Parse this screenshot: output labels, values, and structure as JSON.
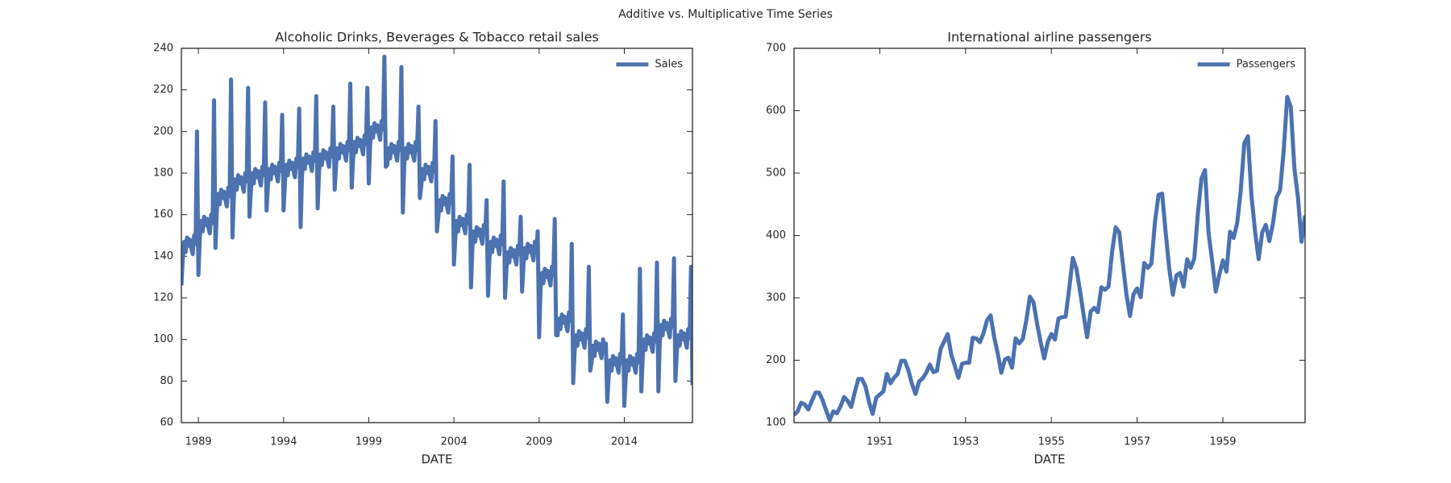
{
  "title": "Additive vs. Multiplicative Time Series",
  "chart_data": [
    {
      "type": "line",
      "title": "Alcoholic Drinks, Beverages & Tobacco retail sales",
      "xlabel": "DATE",
      "x": [
        "1988-01",
        "1988-02",
        "1988-03",
        "1988-04",
        "1988-05",
        "1988-06",
        "1988-07",
        "1988-08",
        "1988-09",
        "1988-10",
        "1988-11",
        "1988-12",
        "1989-01",
        "1989-02",
        "1989-03",
        "1989-04",
        "1989-05",
        "1989-06",
        "1989-07",
        "1989-08",
        "1989-09",
        "1989-10",
        "1989-11",
        "1989-12",
        "1990-01",
        "1990-02",
        "1990-03",
        "1990-04",
        "1990-05",
        "1990-06",
        "1990-07",
        "1990-08",
        "1990-09",
        "1990-10",
        "1990-11",
        "1990-12",
        "1991-01",
        "1991-02",
        "1991-03",
        "1991-04",
        "1991-05",
        "1991-06",
        "1991-07",
        "1991-08",
        "1991-09",
        "1991-10",
        "1991-11",
        "1991-12",
        "1992-01",
        "1992-02",
        "1992-03",
        "1992-04",
        "1992-05",
        "1992-06",
        "1992-07",
        "1992-08",
        "1992-09",
        "1992-10",
        "1992-11",
        "1992-12",
        "1993-01",
        "1993-02",
        "1993-03",
        "1993-04",
        "1993-05",
        "1993-06",
        "1993-07",
        "1993-08",
        "1993-09",
        "1993-10",
        "1993-11",
        "1993-12",
        "1994-01",
        "1994-02",
        "1994-03",
        "1994-04",
        "1994-05",
        "1994-06",
        "1994-07",
        "1994-08",
        "1994-09",
        "1994-10",
        "1994-11",
        "1994-12",
        "1995-01",
        "1995-02",
        "1995-03",
        "1995-04",
        "1995-05",
        "1995-06",
        "1995-07",
        "1995-08",
        "1995-09",
        "1995-10",
        "1995-11",
        "1995-12",
        "1996-01",
        "1996-02",
        "1996-03",
        "1996-04",
        "1996-05",
        "1996-06",
        "1996-07",
        "1996-08",
        "1996-09",
        "1996-10",
        "1996-11",
        "1996-12",
        "1997-01",
        "1997-02",
        "1997-03",
        "1997-04",
        "1997-05",
        "1997-06",
        "1997-07",
        "1997-08",
        "1997-09",
        "1997-10",
        "1997-11",
        "1997-12",
        "1998-01",
        "1998-02",
        "1998-03",
        "1998-04",
        "1998-05",
        "1998-06",
        "1998-07",
        "1998-08",
        "1998-09",
        "1998-10",
        "1998-11",
        "1998-12",
        "1999-01",
        "1999-02",
        "1999-03",
        "1999-04",
        "1999-05",
        "1999-06",
        "1999-07",
        "1999-08",
        "1999-09",
        "1999-10",
        "1999-11",
        "1999-12",
        "2000-01",
        "2000-02",
        "2000-03",
        "2000-04",
        "2000-05",
        "2000-06",
        "2000-07",
        "2000-08",
        "2000-09",
        "2000-10",
        "2000-11",
        "2000-12",
        "2001-01",
        "2001-02",
        "2001-03",
        "2001-04",
        "2001-05",
        "2001-06",
        "2001-07",
        "2001-08",
        "2001-09",
        "2001-10",
        "2001-11",
        "2001-12",
        "2002-01",
        "2002-02",
        "2002-03",
        "2002-04",
        "2002-05",
        "2002-06",
        "2002-07",
        "2002-08",
        "2002-09",
        "2002-10",
        "2002-11",
        "2002-12",
        "2003-01",
        "2003-02",
        "2003-03",
        "2003-04",
        "2003-05",
        "2003-06",
        "2003-07",
        "2003-08",
        "2003-09",
        "2003-10",
        "2003-11",
        "2003-12",
        "2004-01",
        "2004-02",
        "2004-03",
        "2004-04",
        "2004-05",
        "2004-06",
        "2004-07",
        "2004-08",
        "2004-09",
        "2004-10",
        "2004-11",
        "2004-12",
        "2005-01",
        "2005-02",
        "2005-03",
        "2005-04",
        "2005-05",
        "2005-06",
        "2005-07",
        "2005-08",
        "2005-09",
        "2005-10",
        "2005-11",
        "2005-12",
        "2006-01",
        "2006-02",
        "2006-03",
        "2006-04",
        "2006-05",
        "2006-06",
        "2006-07",
        "2006-08",
        "2006-09",
        "2006-10",
        "2006-11",
        "2006-12",
        "2007-01",
        "2007-02",
        "2007-03",
        "2007-04",
        "2007-05",
        "2007-06",
        "2007-07",
        "2007-08",
        "2007-09",
        "2007-10",
        "2007-11",
        "2007-12",
        "2008-01",
        "2008-02",
        "2008-03",
        "2008-04",
        "2008-05",
        "2008-06",
        "2008-07",
        "2008-08",
        "2008-09",
        "2008-10",
        "2008-11",
        "2008-12",
        "2009-01",
        "2009-02",
        "2009-03",
        "2009-04",
        "2009-05",
        "2009-06",
        "2009-07",
        "2009-08",
        "2009-09",
        "2009-10",
        "2009-11",
        "2009-12",
        "2010-01",
        "2010-02",
        "2010-03",
        "2010-04",
        "2010-05",
        "2010-06",
        "2010-07",
        "2010-08",
        "2010-09",
        "2010-10",
        "2010-11",
        "2010-12",
        "2011-01",
        "2011-02",
        "2011-03",
        "2011-04",
        "2011-05",
        "2011-06",
        "2011-07",
        "2011-08",
        "2011-09",
        "2011-10",
        "2011-11",
        "2011-12",
        "2012-01",
        "2012-02",
        "2012-03",
        "2012-04",
        "2012-05",
        "2012-06",
        "2012-07",
        "2012-08",
        "2012-09",
        "2012-10",
        "2012-11",
        "2012-12",
        "2013-01",
        "2013-02",
        "2013-03",
        "2013-04",
        "2013-05",
        "2013-06",
        "2013-07",
        "2013-08",
        "2013-09",
        "2013-10",
        "2013-11",
        "2013-12",
        "2014-01",
        "2014-02",
        "2014-03",
        "2014-04",
        "2014-05",
        "2014-06",
        "2014-07",
        "2014-08",
        "2014-09",
        "2014-10",
        "2014-11",
        "2014-12",
        "2015-01",
        "2015-02",
        "2015-03",
        "2015-04",
        "2015-05",
        "2015-06",
        "2015-07",
        "2015-08",
        "2015-09",
        "2015-10",
        "2015-11",
        "2015-12",
        "2016-01",
        "2016-02",
        "2016-03",
        "2016-04",
        "2016-05",
        "2016-06",
        "2016-07",
        "2016-08",
        "2016-09",
        "2016-10",
        "2016-11",
        "2016-12",
        "2017-01",
        "2017-02",
        "2017-03",
        "2017-04",
        "2017-05",
        "2017-06",
        "2017-07",
        "2017-08",
        "2017-09",
        "2017-10",
        "2017-11",
        "2017-12",
        "2018-01"
      ],
      "series": [
        {
          "name": "Sales",
          "color": "#4c72b0",
          "values": [
            126,
            139,
            147,
            142,
            149,
            145,
            148,
            144,
            141,
            150,
            146,
            200,
            131,
            149,
            157,
            152,
            159,
            155,
            158,
            154,
            151,
            160,
            156,
            215,
            144,
            162,
            170,
            165,
            172,
            168,
            171,
            167,
            164,
            173,
            169,
            225,
            149,
            169,
            177,
            172,
            179,
            175,
            178,
            174,
            171,
            180,
            176,
            221,
            159,
            172,
            180,
            175,
            182,
            178,
            181,
            177,
            174,
            183,
            179,
            214,
            162,
            174,
            182,
            177,
            184,
            180,
            183,
            179,
            176,
            185,
            181,
            208,
            162,
            176,
            184,
            179,
            186,
            182,
            185,
            181,
            178,
            187,
            183,
            211,
            154,
            179,
            187,
            182,
            189,
            185,
            188,
            184,
            181,
            190,
            186,
            217,
            163,
            181,
            189,
            184,
            191,
            187,
            190,
            186,
            183,
            192,
            188,
            212,
            172,
            184,
            192,
            187,
            194,
            190,
            193,
            189,
            186,
            195,
            191,
            223,
            173,
            187,
            195,
            190,
            197,
            193,
            196,
            192,
            189,
            198,
            194,
            221,
            175,
            194,
            202,
            197,
            204,
            200,
            203,
            199,
            196,
            205,
            201,
            236,
            183,
            184,
            192,
            187,
            194,
            190,
            193,
            189,
            186,
            195,
            191,
            231,
            161,
            184,
            192,
            187,
            194,
            190,
            193,
            189,
            186,
            195,
            191,
            212,
            168,
            174,
            182,
            177,
            184,
            180,
            183,
            179,
            176,
            185,
            181,
            205,
            152,
            159,
            167,
            162,
            169,
            165,
            168,
            164,
            161,
            170,
            166,
            188,
            136,
            149,
            157,
            152,
            159,
            155,
            158,
            154,
            151,
            160,
            156,
            184,
            125,
            144,
            152,
            147,
            154,
            150,
            153,
            149,
            146,
            155,
            151,
            167,
            121,
            139,
            147,
            142,
            149,
            145,
            148,
            144,
            141,
            150,
            146,
            176,
            120,
            134,
            142,
            137,
            144,
            140,
            143,
            139,
            136,
            145,
            141,
            159,
            123,
            136,
            144,
            139,
            146,
            142,
            145,
            141,
            138,
            147,
            143,
            152,
            101,
            124,
            132,
            127,
            134,
            130,
            133,
            129,
            126,
            135,
            131,
            158,
            102,
            102,
            110,
            105,
            112,
            108,
            111,
            107,
            104,
            113,
            109,
            146,
            79,
            94,
            102,
            97,
            104,
            100,
            103,
            99,
            96,
            105,
            101,
            135,
            85,
            89,
            97,
            92,
            99,
            95,
            98,
            94,
            91,
            100,
            96,
            98,
            70,
            82,
            90,
            85,
            92,
            88,
            91,
            87,
            84,
            93,
            89,
            112,
            68,
            82,
            90,
            85,
            92,
            88,
            91,
            87,
            84,
            93,
            89,
            134,
            75,
            92,
            100,
            95,
            102,
            98,
            101,
            97,
            94,
            103,
            99,
            137,
            75,
            99,
            107,
            102,
            109,
            105,
            108,
            104,
            101,
            110,
            106,
            139,
            80,
            94,
            102,
            97,
            104,
            100,
            103,
            99,
            96,
            105,
            101,
            135,
            78
          ]
        }
      ],
      "xlim": [
        "1988-01",
        "2018-01"
      ],
      "xticks": [
        1989,
        1994,
        1999,
        2004,
        2009,
        2014
      ],
      "ylim": [
        60,
        240
      ],
      "yticks": [
        60,
        80,
        100,
        120,
        140,
        160,
        180,
        200,
        220,
        240
      ],
      "grid": false,
      "legend": "upper right"
    },
    {
      "type": "line",
      "title": "International airline passengers",
      "xlabel": "DATE",
      "x": [
        "1949-01",
        "1949-02",
        "1949-03",
        "1949-04",
        "1949-05",
        "1949-06",
        "1949-07",
        "1949-08",
        "1949-09",
        "1949-10",
        "1949-11",
        "1949-12",
        "1950-01",
        "1950-02",
        "1950-03",
        "1950-04",
        "1950-05",
        "1950-06",
        "1950-07",
        "1950-08",
        "1950-09",
        "1950-10",
        "1950-11",
        "1950-12",
        "1951-01",
        "1951-02",
        "1951-03",
        "1951-04",
        "1951-05",
        "1951-06",
        "1951-07",
        "1951-08",
        "1951-09",
        "1951-10",
        "1951-11",
        "1951-12",
        "1952-01",
        "1952-02",
        "1952-03",
        "1952-04",
        "1952-05",
        "1952-06",
        "1952-07",
        "1952-08",
        "1952-09",
        "1952-10",
        "1952-11",
        "1952-12",
        "1953-01",
        "1953-02",
        "1953-03",
        "1953-04",
        "1953-05",
        "1953-06",
        "1953-07",
        "1953-08",
        "1953-09",
        "1953-10",
        "1953-11",
        "1953-12",
        "1954-01",
        "1954-02",
        "1954-03",
        "1954-04",
        "1954-05",
        "1954-06",
        "1954-07",
        "1954-08",
        "1954-09",
        "1954-10",
        "1954-11",
        "1954-12",
        "1955-01",
        "1955-02",
        "1955-03",
        "1955-04",
        "1955-05",
        "1955-06",
        "1955-07",
        "1955-08",
        "1955-09",
        "1955-10",
        "1955-11",
        "1955-12",
        "1956-01",
        "1956-02",
        "1956-03",
        "1956-04",
        "1956-05",
        "1956-06",
        "1956-07",
        "1956-08",
        "1956-09",
        "1956-10",
        "1956-11",
        "1956-12",
        "1957-01",
        "1957-02",
        "1957-03",
        "1957-04",
        "1957-05",
        "1957-06",
        "1957-07",
        "1957-08",
        "1957-09",
        "1957-10",
        "1957-11",
        "1957-12",
        "1958-01",
        "1958-02",
        "1958-03",
        "1958-04",
        "1958-05",
        "1958-06",
        "1958-07",
        "1958-08",
        "1958-09",
        "1958-10",
        "1958-11",
        "1958-12",
        "1959-01",
        "1959-02",
        "1959-03",
        "1959-04",
        "1959-05",
        "1959-06",
        "1959-07",
        "1959-08",
        "1959-09",
        "1959-10",
        "1959-11",
        "1959-12",
        "1960-01",
        "1960-02",
        "1960-03",
        "1960-04",
        "1960-05",
        "1960-06",
        "1960-07",
        "1960-08",
        "1960-09",
        "1960-10",
        "1960-11",
        "1960-12"
      ],
      "series": [
        {
          "name": "Passengers",
          "color": "#4c72b0",
          "values": [
            112,
            118,
            132,
            129,
            121,
            135,
            148,
            148,
            136,
            119,
            104,
            118,
            115,
            126,
            141,
            135,
            125,
            149,
            170,
            170,
            158,
            133,
            114,
            140,
            145,
            150,
            178,
            163,
            172,
            178,
            199,
            199,
            184,
            162,
            146,
            166,
            171,
            180,
            193,
            181,
            183,
            218,
            230,
            242,
            209,
            191,
            172,
            194,
            196,
            196,
            236,
            235,
            229,
            243,
            264,
            272,
            237,
            211,
            180,
            201,
            204,
            188,
            235,
            227,
            234,
            264,
            302,
            293,
            259,
            229,
            203,
            229,
            242,
            233,
            267,
            269,
            270,
            315,
            364,
            347,
            312,
            274,
            237,
            278,
            284,
            277,
            317,
            313,
            318,
            374,
            413,
            405,
            355,
            306,
            271,
            306,
            315,
            301,
            356,
            348,
            355,
            422,
            465,
            467,
            404,
            347,
            305,
            336,
            340,
            318,
            362,
            348,
            363,
            435,
            491,
            505,
            404,
            359,
            310,
            337,
            360,
            342,
            406,
            396,
            420,
            472,
            548,
            559,
            463,
            407,
            362,
            405,
            417,
            391,
            419,
            461,
            472,
            535,
            622,
            606,
            508,
            461,
            390,
            432
          ]
        }
      ],
      "xlim": [
        "1949-01",
        "1960-12"
      ],
      "xticks": [
        1951,
        1953,
        1955,
        1957,
        1959
      ],
      "ylim": [
        100,
        700
      ],
      "yticks": [
        100,
        200,
        300,
        400,
        500,
        600,
        700
      ],
      "grid": false,
      "legend": "upper right"
    }
  ]
}
